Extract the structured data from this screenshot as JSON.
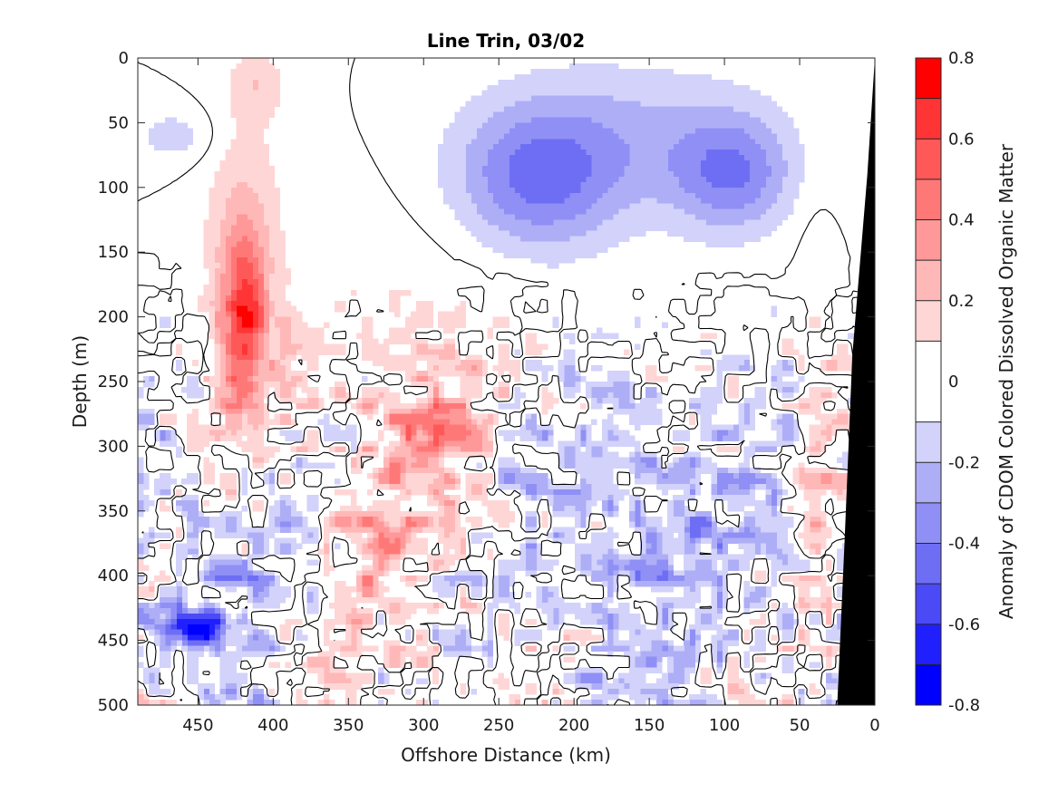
{
  "chart_data": {
    "type": "heatmap",
    "subtype": "filled-contour section with black contour lines and a black bathymetry mask",
    "title": "Line Trin, 03/02",
    "xlabel": "Offshore Distance (km)",
    "ylabel": "Depth (m)",
    "x_reversed": true,
    "y_reversed": true,
    "xlim": [
      0,
      490
    ],
    "ylim": [
      0,
      500
    ],
    "xticks": [
      450,
      400,
      350,
      300,
      250,
      200,
      150,
      100,
      50,
      0
    ],
    "yticks": [
      0,
      50,
      100,
      150,
      200,
      250,
      300,
      350,
      400,
      450,
      500
    ],
    "colorbar": {
      "label": "Anomaly of CDOM Colored Dissolved Organic Matter",
      "range": [
        -0.8,
        0.8
      ],
      "levels": [
        -0.8,
        -0.7,
        -0.6,
        -0.5,
        -0.4,
        -0.3,
        -0.2,
        -0.1,
        0.1,
        0.2,
        0.3,
        0.4,
        0.5,
        0.6,
        0.7,
        0.8
      ],
      "colors": [
        "#0000ff",
        "#2020ff",
        "#4a4af7",
        "#6e6ef5",
        "#8f8ff5",
        "#aeaef7",
        "#d2d2fb",
        "#ffffff",
        "#ffd6d6",
        "#ffb8b8",
        "#ff9898",
        "#ff7878",
        "#ff5858",
        "#ff3535",
        "#ff0000"
      ],
      "ticks": [
        0.8,
        0.6,
        0.4,
        0.2,
        0,
        -0.2,
        -0.4,
        -0.6,
        -0.8
      ],
      "tick_labels": [
        "0.8",
        "0.6",
        "0.4",
        "0.2",
        "0",
        "-0.2",
        "-0.4",
        "-0.6",
        "-0.8"
      ]
    },
    "features": [
      {
        "kind": "blob",
        "dist": 225,
        "depth": 95,
        "rx": 55,
        "ry": 55,
        "value": -0.38
      },
      {
        "kind": "blob",
        "dist": 95,
        "depth": 90,
        "rx": 40,
        "ry": 45,
        "value": -0.35
      },
      {
        "kind": "blob",
        "dist": 165,
        "depth": 60,
        "rx": 95,
        "ry": 60,
        "value": -0.2
      },
      {
        "kind": "blob",
        "dist": 420,
        "depth": 205,
        "rx": 14,
        "ry": 65,
        "value": 0.52
      },
      {
        "kind": "blob",
        "dist": 420,
        "depth": 160,
        "rx": 28,
        "ry": 125,
        "value": 0.22
      },
      {
        "kind": "blob",
        "dist": 310,
        "depth": 330,
        "rx": 65,
        "ry": 160,
        "value": 0.2
      },
      {
        "kind": "blob",
        "dist": 290,
        "depth": 285,
        "rx": 25,
        "ry": 20,
        "value": 0.3
      },
      {
        "kind": "blob",
        "dist": 410,
        "depth": 20,
        "rx": 18,
        "ry": 25,
        "value": 0.15
      },
      {
        "kind": "blob",
        "dist": 465,
        "depth": 60,
        "rx": 28,
        "ry": 22,
        "value": -0.15
      },
      {
        "kind": "blob",
        "dist": 40,
        "depth": 360,
        "rx": 14,
        "ry": 210,
        "value": 0.17
      },
      {
        "kind": "blob",
        "dist": 460,
        "depth": 440,
        "rx": 25,
        "ry": 15,
        "value": -0.55
      },
      {
        "kind": "blob",
        "dist": 440,
        "depth": 400,
        "rx": 45,
        "ry": 90,
        "value": -0.2
      },
      {
        "kind": "blob",
        "dist": 150,
        "depth": 380,
        "rx": 110,
        "ry": 130,
        "value": -0.17
      }
    ],
    "bathymetry": [
      [
        25,
        500
      ],
      [
        0,
        500
      ],
      [
        0,
        0
      ],
      [
        5,
        90
      ],
      [
        15,
        230
      ],
      [
        20,
        370
      ]
    ]
  }
}
